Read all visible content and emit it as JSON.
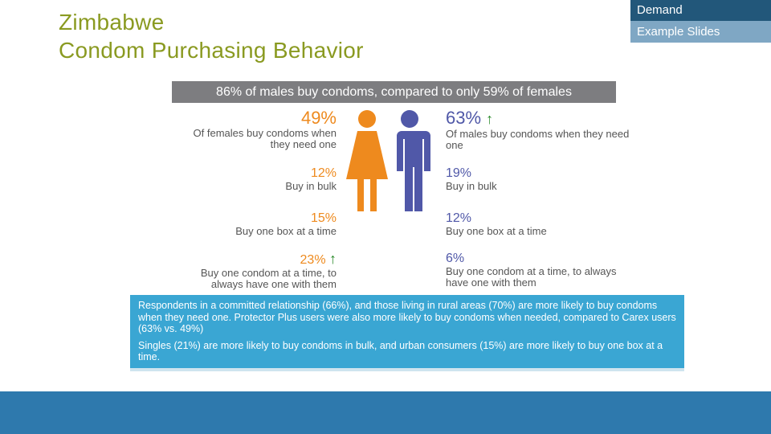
{
  "title": {
    "line1": "Zimbabwe",
    "line2": "Condom Purchasing Behavior"
  },
  "tabs": {
    "demand": "Demand",
    "example": "Example Slides"
  },
  "infographic": {
    "headline": "86% of males buy condoms, compared to only 59% of females",
    "female": [
      {
        "pct": "49%",
        "label": "Of females buy condoms when they need one",
        "trend": ""
      },
      {
        "pct": "12%",
        "label": "Buy in bulk",
        "trend": ""
      },
      {
        "pct": "15%",
        "label": "Buy one box at a time",
        "trend": ""
      },
      {
        "pct": "23%",
        "label": "Buy one condom at a time, to always have one with them",
        "trend": "↑"
      }
    ],
    "male": [
      {
        "pct": "63%",
        "label": "Of males buy condoms when they need one",
        "trend": "↑"
      },
      {
        "pct": "19%",
        "label": "Buy in bulk",
        "trend": ""
      },
      {
        "pct": "12%",
        "label": "Buy one box at a time",
        "trend": ""
      },
      {
        "pct": "6%",
        "label": "Buy one condom at a time, to always have one with them",
        "trend": ""
      }
    ],
    "notes": [
      "Respondents in a committed relationship (66%), and those living in rural areas (70%) are more likely to buy condoms when they need one. Protector Plus users were also more likely to buy condoms when needed, compared to Carex users (63% vs. 49%)",
      "Singles (21%) are more likely to buy condoms in bulk, and urban consumers (15%) are more likely to buy one box at a time."
    ],
    "colors": {
      "female": "#ee8a1e",
      "male": "#5058a8",
      "band": "#7d7d80",
      "notes_bg": "#3aa6d3"
    }
  }
}
